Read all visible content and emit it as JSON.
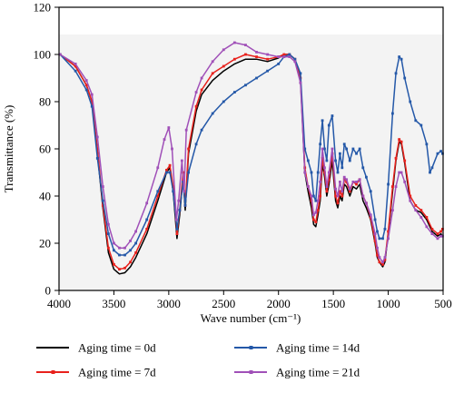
{
  "chart_data": {
    "type": "line",
    "xlabel": "Wave number (cm⁻¹)",
    "ylabel": "Transmittance (%)",
    "xlim": [
      4000,
      500
    ],
    "ylim": [
      0,
      120
    ],
    "x_reversed": true,
    "x_ticks": [
      "4000",
      "3500",
      "3000",
      "2500",
      "2000",
      "1500",
      "1000",
      "500"
    ],
    "y_ticks": [
      "0",
      "20",
      "40",
      "60",
      "80",
      "100",
      "120"
    ],
    "grid": false,
    "legend_position": "bottom",
    "series": [
      {
        "name": "Aging time = 0d",
        "color": "#000000",
        "marker": false,
        "points": [
          [
            3990,
            100
          ],
          [
            3850,
            95
          ],
          [
            3750,
            87
          ],
          [
            3700,
            80
          ],
          [
            3650,
            58
          ],
          [
            3600,
            35
          ],
          [
            3550,
            16
          ],
          [
            3500,
            9
          ],
          [
            3450,
            7
          ],
          [
            3400,
            7.5
          ],
          [
            3350,
            10
          ],
          [
            3300,
            14
          ],
          [
            3200,
            24
          ],
          [
            3100,
            38
          ],
          [
            3020,
            50
          ],
          [
            2990,
            52
          ],
          [
            2960,
            42
          ],
          [
            2925,
            22
          ],
          [
            2900,
            32
          ],
          [
            2870,
            48
          ],
          [
            2850,
            34
          ],
          [
            2820,
            58
          ],
          [
            2750,
            76
          ],
          [
            2700,
            83
          ],
          [
            2600,
            89
          ],
          [
            2500,
            93
          ],
          [
            2400,
            96
          ],
          [
            2300,
            98
          ],
          [
            2200,
            98
          ],
          [
            2100,
            97
          ],
          [
            2000,
            98.5
          ],
          [
            1950,
            100
          ],
          [
            1900,
            100
          ],
          [
            1850,
            98
          ],
          [
            1800,
            90
          ],
          [
            1760,
            50
          ],
          [
            1730,
            42
          ],
          [
            1700,
            35
          ],
          [
            1680,
            28
          ],
          [
            1660,
            27
          ],
          [
            1640,
            32
          ],
          [
            1620,
            38
          ],
          [
            1600,
            54
          ],
          [
            1580,
            48
          ],
          [
            1560,
            40
          ],
          [
            1540,
            45
          ],
          [
            1510,
            55
          ],
          [
            1480,
            38
          ],
          [
            1460,
            35
          ],
          [
            1440,
            40
          ],
          [
            1420,
            38
          ],
          [
            1400,
            45
          ],
          [
            1380,
            44
          ],
          [
            1350,
            40
          ],
          [
            1320,
            44
          ],
          [
            1290,
            43
          ],
          [
            1260,
            45
          ],
          [
            1230,
            38
          ],
          [
            1200,
            35
          ],
          [
            1160,
            30
          ],
          [
            1120,
            20
          ],
          [
            1100,
            14
          ],
          [
            1080,
            12
          ],
          [
            1050,
            10
          ],
          [
            1030,
            12
          ],
          [
            1000,
            24
          ],
          [
            960,
            42
          ],
          [
            930,
            55
          ],
          [
            900,
            63
          ],
          [
            880,
            62
          ],
          [
            850,
            54
          ],
          [
            800,
            38
          ],
          [
            750,
            34
          ],
          [
            700,
            33
          ],
          [
            650,
            30
          ],
          [
            600,
            25
          ],
          [
            550,
            23
          ],
          [
            520,
            24
          ],
          [
            505,
            23
          ]
        ]
      },
      {
        "name": "Aging time = 7d",
        "color": "#e8211c",
        "marker": true,
        "points": [
          [
            3990,
            100
          ],
          [
            3850,
            95
          ],
          [
            3750,
            87
          ],
          [
            3700,
            80
          ],
          [
            3650,
            60
          ],
          [
            3600,
            36
          ],
          [
            3550,
            18
          ],
          [
            3500,
            11
          ],
          [
            3450,
            9
          ],
          [
            3400,
            9.5
          ],
          [
            3350,
            12
          ],
          [
            3300,
            16
          ],
          [
            3200,
            26
          ],
          [
            3100,
            40
          ],
          [
            3020,
            51
          ],
          [
            2990,
            53
          ],
          [
            2960,
            44
          ],
          [
            2925,
            24
          ],
          [
            2900,
            34
          ],
          [
            2870,
            50
          ],
          [
            2850,
            36
          ],
          [
            2820,
            60
          ],
          [
            2750,
            78
          ],
          [
            2700,
            85
          ],
          [
            2600,
            92
          ],
          [
            2500,
            95
          ],
          [
            2400,
            98
          ],
          [
            2300,
            100
          ],
          [
            2200,
            99
          ],
          [
            2100,
            98
          ],
          [
            2000,
            99
          ],
          [
            1950,
            100
          ],
          [
            1900,
            100
          ],
          [
            1850,
            98
          ],
          [
            1800,
            90
          ],
          [
            1760,
            52
          ],
          [
            1730,
            44
          ],
          [
            1700,
            38
          ],
          [
            1680,
            30
          ],
          [
            1660,
            29
          ],
          [
            1640,
            34
          ],
          [
            1620,
            40
          ],
          [
            1600,
            56
          ],
          [
            1580,
            50
          ],
          [
            1560,
            42
          ],
          [
            1540,
            47
          ],
          [
            1510,
            58
          ],
          [
            1480,
            40
          ],
          [
            1460,
            37
          ],
          [
            1440,
            42
          ],
          [
            1420,
            40
          ],
          [
            1400,
            47
          ],
          [
            1380,
            46
          ],
          [
            1350,
            42
          ],
          [
            1320,
            46
          ],
          [
            1290,
            45
          ],
          [
            1260,
            47
          ],
          [
            1230,
            40
          ],
          [
            1200,
            37
          ],
          [
            1160,
            31
          ],
          [
            1120,
            21
          ],
          [
            1100,
            15
          ],
          [
            1080,
            12
          ],
          [
            1050,
            11
          ],
          [
            1030,
            13
          ],
          [
            1000,
            25
          ],
          [
            960,
            44
          ],
          [
            930,
            56
          ],
          [
            900,
            64
          ],
          [
            880,
            63
          ],
          [
            850,
            55
          ],
          [
            800,
            40
          ],
          [
            750,
            36
          ],
          [
            700,
            34
          ],
          [
            650,
            31
          ],
          [
            600,
            26
          ],
          [
            550,
            24
          ],
          [
            520,
            25
          ],
          [
            505,
            26
          ]
        ]
      },
      {
        "name": "Aging time = 14d",
        "color": "#2458a8",
        "marker": true,
        "points": [
          [
            3990,
            100
          ],
          [
            3850,
            93
          ],
          [
            3750,
            85
          ],
          [
            3700,
            78
          ],
          [
            3650,
            56
          ],
          [
            3600,
            38
          ],
          [
            3550,
            24
          ],
          [
            3500,
            17
          ],
          [
            3450,
            15
          ],
          [
            3400,
            15
          ],
          [
            3350,
            17
          ],
          [
            3300,
            20
          ],
          [
            3200,
            30
          ],
          [
            3100,
            42
          ],
          [
            3020,
            50
          ],
          [
            2990,
            50
          ],
          [
            2960,
            42
          ],
          [
            2925,
            26
          ],
          [
            2900,
            34
          ],
          [
            2870,
            46
          ],
          [
            2850,
            36
          ],
          [
            2820,
            50
          ],
          [
            2750,
            62
          ],
          [
            2700,
            68
          ],
          [
            2600,
            75
          ],
          [
            2500,
            80
          ],
          [
            2400,
            84
          ],
          [
            2300,
            87
          ],
          [
            2200,
            90
          ],
          [
            2100,
            93
          ],
          [
            2000,
            96
          ],
          [
            1950,
            99
          ],
          [
            1900,
            100
          ],
          [
            1850,
            98
          ],
          [
            1800,
            92
          ],
          [
            1760,
            60
          ],
          [
            1730,
            55
          ],
          [
            1700,
            50
          ],
          [
            1680,
            40
          ],
          [
            1660,
            38
          ],
          [
            1640,
            50
          ],
          [
            1620,
            62
          ],
          [
            1600,
            72
          ],
          [
            1580,
            60
          ],
          [
            1560,
            55
          ],
          [
            1540,
            70
          ],
          [
            1510,
            74
          ],
          [
            1480,
            55
          ],
          [
            1460,
            50
          ],
          [
            1440,
            58
          ],
          [
            1420,
            52
          ],
          [
            1400,
            62
          ],
          [
            1380,
            60
          ],
          [
            1350,
            55
          ],
          [
            1320,
            60
          ],
          [
            1290,
            58
          ],
          [
            1260,
            60
          ],
          [
            1230,
            52
          ],
          [
            1200,
            48
          ],
          [
            1160,
            42
          ],
          [
            1120,
            30
          ],
          [
            1100,
            25
          ],
          [
            1080,
            22
          ],
          [
            1050,
            22
          ],
          [
            1030,
            26
          ],
          [
            1000,
            45
          ],
          [
            960,
            75
          ],
          [
            930,
            92
          ],
          [
            900,
            99
          ],
          [
            880,
            98
          ],
          [
            850,
            90
          ],
          [
            800,
            80
          ],
          [
            750,
            72
          ],
          [
            700,
            70
          ],
          [
            650,
            62
          ],
          [
            620,
            50
          ],
          [
            600,
            52
          ],
          [
            550,
            58
          ],
          [
            520,
            59
          ],
          [
            505,
            58
          ]
        ]
      },
      {
        "name": "Aging time = 21d",
        "color": "#a050b8",
        "marker": true,
        "points": [
          [
            3990,
            100
          ],
          [
            3850,
            96
          ],
          [
            3750,
            89
          ],
          [
            3700,
            83
          ],
          [
            3650,
            65
          ],
          [
            3600,
            44
          ],
          [
            3550,
            28
          ],
          [
            3500,
            20
          ],
          [
            3450,
            18
          ],
          [
            3400,
            18
          ],
          [
            3350,
            21
          ],
          [
            3300,
            25
          ],
          [
            3200,
            37
          ],
          [
            3100,
            52
          ],
          [
            3040,
            64
          ],
          [
            3000,
            69
          ],
          [
            2970,
            60
          ],
          [
            2930,
            30
          ],
          [
            2910,
            38
          ],
          [
            2880,
            55
          ],
          [
            2860,
            42
          ],
          [
            2840,
            68
          ],
          [
            2750,
            84
          ],
          [
            2700,
            90
          ],
          [
            2600,
            97
          ],
          [
            2500,
            102
          ],
          [
            2400,
            105
          ],
          [
            2300,
            104
          ],
          [
            2200,
            101
          ],
          [
            2100,
            100
          ],
          [
            2000,
            99
          ],
          [
            1950,
            99
          ],
          [
            1900,
            99
          ],
          [
            1850,
            97
          ],
          [
            1800,
            88
          ],
          [
            1760,
            50
          ],
          [
            1730,
            44
          ],
          [
            1700,
            40
          ],
          [
            1680,
            32
          ],
          [
            1660,
            33
          ],
          [
            1640,
            38
          ],
          [
            1620,
            46
          ],
          [
            1600,
            60
          ],
          [
            1580,
            52
          ],
          [
            1560,
            44
          ],
          [
            1540,
            50
          ],
          [
            1510,
            60
          ],
          [
            1480,
            43
          ],
          [
            1460,
            40
          ],
          [
            1440,
            46
          ],
          [
            1420,
            42
          ],
          [
            1400,
            48
          ],
          [
            1380,
            47
          ],
          [
            1350,
            43
          ],
          [
            1320,
            46
          ],
          [
            1290,
            46
          ],
          [
            1260,
            47
          ],
          [
            1230,
            40
          ],
          [
            1200,
            37
          ],
          [
            1160,
            32
          ],
          [
            1120,
            24
          ],
          [
            1100,
            18
          ],
          [
            1080,
            14
          ],
          [
            1050,
            12
          ],
          [
            1030,
            14
          ],
          [
            1000,
            22
          ],
          [
            960,
            34
          ],
          [
            930,
            44
          ],
          [
            900,
            50
          ],
          [
            880,
            50
          ],
          [
            850,
            46
          ],
          [
            800,
            38
          ],
          [
            750,
            34
          ],
          [
            700,
            31
          ],
          [
            650,
            27
          ],
          [
            600,
            24
          ],
          [
            550,
            22
          ],
          [
            520,
            23
          ],
          [
            505,
            23
          ]
        ]
      }
    ]
  }
}
